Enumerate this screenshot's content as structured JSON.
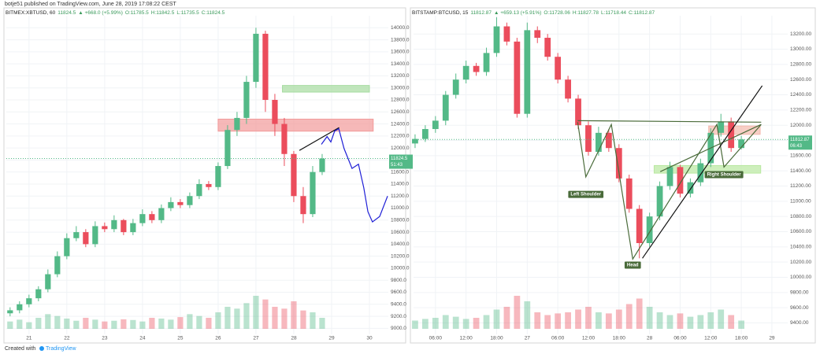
{
  "header": "botje51 published on TradingView.com, June 28, 2019 17:08:22 CEST",
  "footer": "Created with",
  "footer_brand": "TradingView",
  "chart_data": [
    {
      "type": "candlestick",
      "title_parts": [
        {
          "text": "BITMEX:XBTUSD, 60",
          "color": "#222222"
        },
        {
          "text": "11824.5",
          "color": "#3a9a5b"
        },
        {
          "text": "▲ +668.0 (+5.99%)",
          "color": "#3a9a5b"
        },
        {
          "text": "O:11785.5",
          "color": "#3a9a5b"
        },
        {
          "text": "H:11842.5",
          "color": "#3a9a5b"
        },
        {
          "text": "L:11735.5",
          "color": "#3a9a5b"
        },
        {
          "text": "C:11824.5",
          "color": "#3a9a5b"
        }
      ],
      "xlim": [
        20.4,
        30.5
      ],
      "xticks": [
        21,
        22,
        23,
        24,
        25,
        26,
        27,
        28,
        29,
        30
      ],
      "ylim": [
        8900,
        14200
      ],
      "yticks": [
        {
          "value": 9000,
          "label": "9000.0"
        },
        {
          "value": 9200,
          "label": "9200.0"
        },
        {
          "value": 9400,
          "label": "9400.0"
        },
        {
          "value": 9600,
          "label": "9600.0"
        },
        {
          "value": 9800,
          "label": "9800.0"
        },
        {
          "value": 10000,
          "label": "10000.0"
        },
        {
          "value": 10200,
          "label": "10200.0"
        },
        {
          "value": 10400,
          "label": "10400.0"
        },
        {
          "value": 10600,
          "label": "10600.0"
        },
        {
          "value": 10800,
          "label": "10800.0"
        },
        {
          "value": 11000,
          "label": "11000.0"
        },
        {
          "value": 11200,
          "label": "11200.0"
        },
        {
          "value": 11400,
          "label": "11400.0"
        },
        {
          "value": 11600,
          "label": "11600.0"
        },
        {
          "value": 11800,
          "label": "11800.0"
        },
        {
          "value": 12000,
          "label": "12000.0"
        },
        {
          "value": 12200,
          "label": "12200.0"
        },
        {
          "value": 12400,
          "label": "12400.0"
        },
        {
          "value": 12600,
          "label": "12600.0"
        },
        {
          "value": 12800,
          "label": "12800.0"
        },
        {
          "value": 13000,
          "label": "13000.0"
        },
        {
          "value": 13200,
          "label": "13200.0"
        },
        {
          "value": 13400,
          "label": "13400.0"
        },
        {
          "value": 13600,
          "label": "13600.0"
        },
        {
          "value": 13800,
          "label": "13800.0"
        },
        {
          "value": 14000,
          "label": "14000.0"
        }
      ],
      "grid": true,
      "up_color": "#53b987",
      "down_color": "#eb4d5c",
      "x": [
        20.5,
        20.75,
        21,
        21.25,
        21.5,
        21.75,
        22,
        22.25,
        22.5,
        22.75,
        23,
        23.25,
        23.5,
        23.75,
        24,
        24.25,
        24.5,
        24.75,
        25,
        25.25,
        25.5,
        25.75,
        26,
        26.25,
        26.5,
        26.75,
        27,
        27.25,
        27.5,
        27.75,
        28,
        28.25,
        28.5,
        28.75
      ],
      "open": [
        9250,
        9300,
        9400,
        9500,
        9650,
        9900,
        10200,
        10500,
        10600,
        10400,
        10700,
        10650,
        10800,
        10600,
        10750,
        10900,
        10800,
        11000,
        11100,
        11050,
        11200,
        11400,
        11350,
        11700,
        12300,
        12500,
        13100,
        13900,
        12800,
        12400,
        11900,
        11200,
        10900,
        11600
      ],
      "high": [
        9350,
        9450,
        9560,
        9700,
        9980,
        10280,
        10580,
        10700,
        10650,
        10780,
        10760,
        10880,
        10820,
        10820,
        10980,
        10950,
        11060,
        11180,
        11150,
        11260,
        11480,
        11450,
        11760,
        12380,
        12600,
        13200,
        14000,
        13950,
        12900,
        12500,
        11950,
        11350,
        11700,
        11900
      ],
      "low": [
        9200,
        9250,
        9350,
        9450,
        9600,
        9850,
        10150,
        10450,
        10350,
        10350,
        10600,
        10600,
        10550,
        10550,
        10700,
        10750,
        10750,
        10950,
        11000,
        11000,
        11150,
        11300,
        11300,
        11650,
        12200,
        12400,
        13000,
        12600,
        12200,
        11700,
        11100,
        10750,
        10850,
        11550
      ],
      "close": [
        9300,
        9400,
        9500,
        9650,
        9900,
        10200,
        10500,
        10600,
        10400,
        10700,
        10650,
        10800,
        10600,
        10750,
        10900,
        10800,
        11000,
        11100,
        11050,
        11200,
        11400,
        11350,
        11700,
        12300,
        12500,
        13100,
        13900,
        12800,
        12400,
        11900,
        11200,
        10900,
        11600,
        11824.5
      ],
      "volume": [
        20,
        25,
        18,
        30,
        40,
        35,
        28,
        22,
        30,
        25,
        20,
        22,
        26,
        24,
        20,
        30,
        28,
        25,
        32,
        40,
        35,
        30,
        45,
        60,
        55,
        70,
        90,
        80,
        60,
        55,
        75,
        50,
        45,
        30
      ],
      "last_price": 11824.5,
      "countdown": "51:43",
      "zones": [
        {
          "x": [
            27.7,
            30.0
          ],
          "y": [
            12930,
            13040
          ],
          "color": "#a6dba0"
        },
        {
          "x": [
            26.0,
            30.1
          ],
          "y": [
            12280,
            12480
          ],
          "color": "#f29a9a"
        }
      ],
      "lines": [
        {
          "x": [
            28.15,
            29.2
          ],
          "y": [
            11960,
            12340
          ],
          "color": "#111111"
        },
        {
          "x": [
            28.73,
            28.88,
            28.98,
            29.08,
            29.19,
            29.33,
            29.54,
            29.71,
            29.85,
            29.96,
            30.08,
            30.27,
            30.48
          ],
          "y": [
            12060,
            12190,
            12100,
            12280,
            12320,
            11990,
            11660,
            11730,
            11340,
            10940,
            10770,
            10860,
            11200
          ],
          "color": "#1f1fd6"
        }
      ],
      "labels": []
    },
    {
      "type": "candlestick",
      "title_parts": [
        {
          "text": "BITSTAMP:BTCUSD, 15",
          "color": "#222222"
        },
        {
          "text": "11812.87",
          "color": "#3a9a5b"
        },
        {
          "text": "▲ +659.13 (+5.91%)",
          "color": "#3a9a5b"
        },
        {
          "text": "O:11728.06",
          "color": "#3a9a5b"
        },
        {
          "text": "H:11827.78",
          "color": "#3a9a5b"
        },
        {
          "text": "L:11718.44",
          "color": "#3a9a5b"
        },
        {
          "text": "C:11812.87",
          "color": "#3a9a5b"
        }
      ],
      "xlim": [
        1.7,
        75.1
      ],
      "xticks": [
        {
          "value": 6,
          "label": "06:00"
        },
        {
          "value": 12,
          "label": "12:00"
        },
        {
          "value": 18,
          "label": "18:00"
        },
        {
          "value": 24,
          "label": "27"
        },
        {
          "value": 30,
          "label": "06:00"
        },
        {
          "value": 36,
          "label": "12:00"
        },
        {
          "value": 42,
          "label": "18:00"
        },
        {
          "value": 48,
          "label": "28"
        },
        {
          "value": 54,
          "label": "06:00"
        },
        {
          "value": 60,
          "label": "12:00"
        },
        {
          "value": 66,
          "label": "18:00"
        },
        {
          "value": 72,
          "label": "29"
        }
      ],
      "ylim": [
        9250,
        13440
      ],
      "yticks": [
        {
          "value": 9400,
          "label": "9400.00"
        },
        {
          "value": 9600,
          "label": "9600.00"
        },
        {
          "value": 9800,
          "label": "9800.00"
        },
        {
          "value": 10000,
          "label": "10000.00"
        },
        {
          "value": 10200,
          "label": "10200.00"
        },
        {
          "value": 10400,
          "label": "10400.00"
        },
        {
          "value": 10600,
          "label": "10600.00"
        },
        {
          "value": 10800,
          "label": "10800.00"
        },
        {
          "value": 11000,
          "label": "11000.00"
        },
        {
          "value": 11200,
          "label": "11200.00"
        },
        {
          "value": 11400,
          "label": "11400.00"
        },
        {
          "value": 11600,
          "label": "11600.00"
        },
        {
          "value": 11800,
          "label": "11800.00"
        },
        {
          "value": 12000,
          "label": "12000.00"
        },
        {
          "value": 12200,
          "label": "12200.00"
        },
        {
          "value": 12400,
          "label": "12400.00"
        },
        {
          "value": 12600,
          "label": "12600.00"
        },
        {
          "value": 12800,
          "label": "12800.00"
        },
        {
          "value": 13000,
          "label": "13000.00"
        },
        {
          "value": 13200,
          "label": "13200.00"
        }
      ],
      "grid": true,
      "up_color": "#53b987",
      "down_color": "#eb4d5c",
      "x": [
        2,
        4,
        6,
        8,
        10,
        12,
        14,
        16,
        18,
        20,
        22,
        24,
        26,
        28,
        30,
        32,
        34,
        36,
        38,
        40,
        42,
        44,
        46,
        48,
        50,
        52,
        54,
        56,
        58,
        60,
        62,
        64,
        66
      ],
      "open": [
        11760,
        11820,
        11950,
        12060,
        12400,
        12600,
        12780,
        12700,
        12950,
        13300,
        13100,
        12150,
        13250,
        13150,
        12900,
        12600,
        12350,
        12000,
        11650,
        11900,
        11700,
        11300,
        10900,
        10450,
        10800,
        11200,
        11450,
        11100,
        11250,
        11500,
        11900,
        12050,
        11700
      ],
      "high": [
        11880,
        12000,
        12120,
        12450,
        12680,
        12850,
        12820,
        13020,
        13420,
        13350,
        13150,
        13350,
        13300,
        13200,
        12950,
        12650,
        12400,
        12050,
        11980,
        11950,
        11750,
        11350,
        10950,
        10850,
        11260,
        11520,
        11480,
        11300,
        11560,
        11960,
        12150,
        12100,
        11860
      ],
      "low": [
        11700,
        11780,
        11900,
        12000,
        12350,
        12550,
        12650,
        12650,
        12900,
        13050,
        12100,
        12100,
        13080,
        12850,
        12550,
        12300,
        11950,
        11600,
        11600,
        11650,
        11250,
        10850,
        10250,
        10400,
        10750,
        11150,
        11050,
        11050,
        11200,
        11450,
        11850,
        11650,
        11680
      ],
      "close": [
        11820,
        11950,
        12060,
        12400,
        12600,
        12780,
        12700,
        12950,
        13300,
        13100,
        12150,
        13250,
        13150,
        12900,
        12600,
        12350,
        12000,
        11650,
        11900,
        11700,
        11300,
        10900,
        10450,
        10800,
        11200,
        11450,
        11100,
        11250,
        11500,
        11900,
        12050,
        11700,
        11812.87
      ],
      "volume": [
        15,
        18,
        20,
        25,
        22,
        18,
        20,
        25,
        35,
        40,
        60,
        50,
        30,
        25,
        28,
        30,
        35,
        40,
        30,
        28,
        35,
        45,
        55,
        40,
        30,
        25,
        28,
        22,
        25,
        30,
        35,
        25,
        15
      ],
      "last_price": 11812.87,
      "countdown": "06:43",
      "zones": [
        {
          "x": [
            59.6,
            69.7
          ],
          "y": [
            11880,
            11990
          ],
          "color": "#f4b9ad"
        },
        {
          "x": [
            48.9,
            69.8
          ],
          "y": [
            11370,
            11470
          ],
          "color": "#b9e8a0"
        }
      ],
      "lines": [
        {
          "x": [
            33.9,
            69.9
          ],
          "y": [
            12060,
            12040
          ],
          "color": "#4a6b3a"
        },
        {
          "x": [
            33.9,
            35.5,
            40.5,
            44.7,
            61.2,
            62.6,
            69.9
          ],
          "y": [
            12040,
            11320,
            12010,
            10240,
            12010,
            11450,
            12010
          ],
          "color": "#4a6b3a"
        },
        {
          "x": [
            50.1,
            69.9
          ],
          "y": [
            11390,
            12010
          ],
          "color": "#4a6b3a"
        },
        {
          "x": [
            46.6,
            70.1
          ],
          "y": [
            10250,
            12520
          ],
          "color": "#111111"
        }
      ],
      "labels": [
        {
          "text": "Left Shoulder",
          "x": 35.5,
          "y": 11090
        },
        {
          "text": "Head",
          "x": 44.7,
          "y": 10160
        },
        {
          "text": "Right Shoulder",
          "x": 62.6,
          "y": 11350
        }
      ]
    }
  ]
}
